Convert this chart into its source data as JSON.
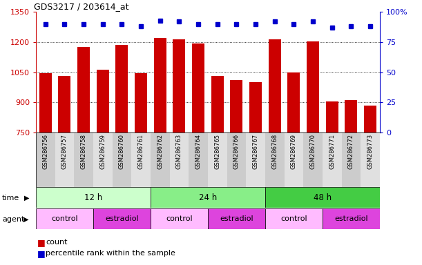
{
  "title": "GDS3217 / 203614_at",
  "samples": [
    "GSM286756",
    "GSM286757",
    "GSM286758",
    "GSM286759",
    "GSM286760",
    "GSM286761",
    "GSM286762",
    "GSM286763",
    "GSM286764",
    "GSM286765",
    "GSM286766",
    "GSM286767",
    "GSM286768",
    "GSM286769",
    "GSM286770",
    "GSM286771",
    "GSM286772",
    "GSM286773"
  ],
  "counts": [
    1047,
    1030,
    1175,
    1062,
    1185,
    1045,
    1220,
    1215,
    1193,
    1030,
    1010,
    1000,
    1212,
    1048,
    1202,
    905,
    910,
    885
  ],
  "percentile_ranks": [
    90,
    90,
    90,
    90,
    90,
    88,
    93,
    92,
    90,
    90,
    90,
    90,
    92,
    90,
    92,
    87,
    88,
    88
  ],
  "ymin": 750,
  "ymax": 1350,
  "yticks": [
    750,
    900,
    1050,
    1200,
    1350
  ],
  "bar_color": "#cc0000",
  "dot_color": "#0000cc",
  "time_groups": [
    {
      "label": "12 h",
      "start": 0,
      "end": 6,
      "color": "#ccffcc"
    },
    {
      "label": "24 h",
      "start": 6,
      "end": 12,
      "color": "#88ee88"
    },
    {
      "label": "48 h",
      "start": 12,
      "end": 18,
      "color": "#44cc44"
    }
  ],
  "agent_groups": [
    {
      "label": "control",
      "start": 0,
      "end": 3,
      "color": "#ffbbff"
    },
    {
      "label": "estradiol",
      "start": 3,
      "end": 6,
      "color": "#dd44dd"
    },
    {
      "label": "control",
      "start": 6,
      "end": 9,
      "color": "#ffbbff"
    },
    {
      "label": "estradiol",
      "start": 9,
      "end": 12,
      "color": "#dd44dd"
    },
    {
      "label": "control",
      "start": 12,
      "end": 15,
      "color": "#ffbbff"
    },
    {
      "label": "estradiol",
      "start": 15,
      "end": 18,
      "color": "#dd44dd"
    }
  ],
  "legend_count_label": "count",
  "legend_pct_label": "percentile rank within the sample",
  "right_yticks": [
    0,
    25,
    50,
    75,
    100
  ],
  "right_yticklabels": [
    "0",
    "25",
    "50",
    "75",
    "100%"
  ]
}
